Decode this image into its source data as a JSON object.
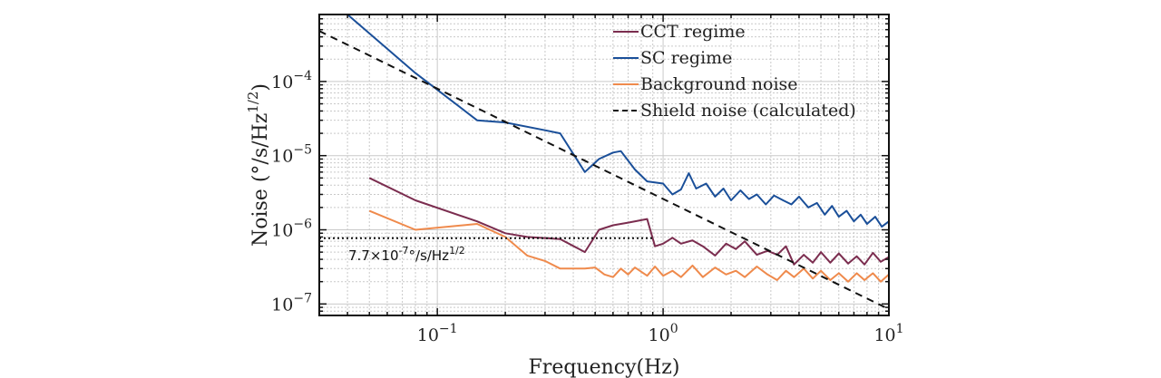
{
  "chart_data": {
    "type": "line",
    "xlabel": "Frequency(Hz)",
    "ylabel_main": "Noise (°/s/Hz",
    "ylabel_sup": "1/2",
    "ylabel_end": ")",
    "x_scale": "log",
    "y_scale": "log",
    "xlim": [
      0.03,
      10
    ],
    "ylim": [
      7e-08,
      0.0008
    ],
    "grid": true,
    "legend_position": "top-right",
    "x_ticks": [
      {
        "value": 0.1,
        "base": "10",
        "exp": "−1"
      },
      {
        "value": 1,
        "base": "10",
        "exp": "0"
      },
      {
        "value": 10,
        "base": "10",
        "exp": "1"
      }
    ],
    "y_ticks": [
      {
        "value": 1e-07,
        "base": "10",
        "exp": "−7"
      },
      {
        "value": 1e-06,
        "base": "10",
        "exp": "−6"
      },
      {
        "value": 1e-05,
        "base": "10",
        "exp": "−5"
      },
      {
        "value": 0.0001,
        "base": "10",
        "exp": "−4"
      }
    ],
    "series": [
      {
        "name": "CCT regime",
        "color": "#7b2d4f",
        "dash": "",
        "points": [
          [
            0.05,
            5e-06
          ],
          [
            0.08,
            2.5e-06
          ],
          [
            0.15,
            1.3e-06
          ],
          [
            0.2,
            9e-07
          ],
          [
            0.25,
            8e-07
          ],
          [
            0.35,
            7.5e-07
          ],
          [
            0.45,
            5e-07
          ],
          [
            0.52,
            1e-06
          ],
          [
            0.6,
            1.15e-06
          ],
          [
            0.7,
            1.25e-06
          ],
          [
            0.85,
            1.4e-06
          ],
          [
            0.92,
            6e-07
          ],
          [
            1.0,
            6.5e-07
          ],
          [
            1.1,
            7.8e-07
          ],
          [
            1.2,
            6.5e-07
          ],
          [
            1.35,
            7.2e-07
          ],
          [
            1.5,
            6e-07
          ],
          [
            1.7,
            4.5e-07
          ],
          [
            1.9,
            6.5e-07
          ],
          [
            2.1,
            5.5e-07
          ],
          [
            2.3,
            7e-07
          ],
          [
            2.6,
            4.6e-07
          ],
          [
            2.9,
            5.2e-07
          ],
          [
            3.2,
            4.6e-07
          ],
          [
            3.5,
            6e-07
          ],
          [
            3.8,
            3.4e-07
          ],
          [
            4.2,
            4.6e-07
          ],
          [
            4.6,
            3.6e-07
          ],
          [
            5.0,
            5e-07
          ],
          [
            5.5,
            3.6e-07
          ],
          [
            6.0,
            4.8e-07
          ],
          [
            6.6,
            3.5e-07
          ],
          [
            7.2,
            4.4e-07
          ],
          [
            7.8,
            3.4e-07
          ],
          [
            8.5,
            4.9e-07
          ],
          [
            9.2,
            3.7e-07
          ],
          [
            10,
            4.3e-07
          ]
        ]
      },
      {
        "name": "SC regime",
        "color": "#1a4f99",
        "dash": "",
        "points": [
          [
            0.04,
            0.0008
          ],
          [
            0.08,
            0.00013
          ],
          [
            0.15,
            3e-05
          ],
          [
            0.2,
            2.8e-05
          ],
          [
            0.3,
            2.2e-05
          ],
          [
            0.35,
            2e-05
          ],
          [
            0.45,
            6e-06
          ],
          [
            0.52,
            9e-06
          ],
          [
            0.6,
            1.1e-05
          ],
          [
            0.65,
            1.15e-05
          ],
          [
            0.75,
            6.5e-06
          ],
          [
            0.85,
            4.5e-06
          ],
          [
            1.0,
            4.2e-06
          ],
          [
            1.1,
            3e-06
          ],
          [
            1.2,
            3.5e-06
          ],
          [
            1.3,
            5.8e-06
          ],
          [
            1.4,
            3.6e-06
          ],
          [
            1.55,
            4.2e-06
          ],
          [
            1.7,
            2.8e-06
          ],
          [
            1.85,
            3.6e-06
          ],
          [
            2.0,
            2.5e-06
          ],
          [
            2.2,
            3.4e-06
          ],
          [
            2.4,
            2.6e-06
          ],
          [
            2.6,
            3e-06
          ],
          [
            2.85,
            2.2e-06
          ],
          [
            3.1,
            2.9e-06
          ],
          [
            3.4,
            2.5e-06
          ],
          [
            3.7,
            2.2e-06
          ],
          [
            4.0,
            2.8e-06
          ],
          [
            4.4,
            2e-06
          ],
          [
            4.8,
            2.3e-06
          ],
          [
            5.2,
            1.6e-06
          ],
          [
            5.6,
            2.1e-06
          ],
          [
            6.0,
            1.5e-06
          ],
          [
            6.5,
            1.8e-06
          ],
          [
            7.0,
            1.3e-06
          ],
          [
            7.5,
            1.6e-06
          ],
          [
            8.0,
            1.2e-06
          ],
          [
            8.7,
            1.5e-06
          ],
          [
            9.3,
            1.1e-06
          ],
          [
            10,
            1.3e-06
          ]
        ]
      },
      {
        "name": "Background noise",
        "color": "#ef8a4c",
        "dash": "",
        "points": [
          [
            0.05,
            1.8e-06
          ],
          [
            0.08,
            1e-06
          ],
          [
            0.15,
            1.2e-06
          ],
          [
            0.2,
            8e-07
          ],
          [
            0.25,
            4.5e-07
          ],
          [
            0.3,
            3.8e-07
          ],
          [
            0.35,
            3e-07
          ],
          [
            0.45,
            3e-07
          ],
          [
            0.5,
            3.1e-07
          ],
          [
            0.55,
            2.5e-07
          ],
          [
            0.6,
            2.3e-07
          ],
          [
            0.65,
            3e-07
          ],
          [
            0.7,
            2.5e-07
          ],
          [
            0.75,
            3.1e-07
          ],
          [
            0.85,
            2.4e-07
          ],
          [
            0.92,
            3.2e-07
          ],
          [
            1.0,
            2.4e-07
          ],
          [
            1.1,
            2.8e-07
          ],
          [
            1.2,
            2.3e-07
          ],
          [
            1.35,
            3.3e-07
          ],
          [
            1.5,
            2.3e-07
          ],
          [
            1.7,
            3.1e-07
          ],
          [
            1.9,
            2.5e-07
          ],
          [
            2.1,
            2.8e-07
          ],
          [
            2.3,
            2.3e-07
          ],
          [
            2.6,
            3.2e-07
          ],
          [
            2.9,
            2.5e-07
          ],
          [
            3.2,
            2.1e-07
          ],
          [
            3.5,
            2.8e-07
          ],
          [
            3.8,
            2.3e-07
          ],
          [
            4.2,
            3e-07
          ],
          [
            4.6,
            2.2e-07
          ],
          [
            5.0,
            2.8e-07
          ],
          [
            5.5,
            2.1e-07
          ],
          [
            6.0,
            2.6e-07
          ],
          [
            6.6,
            2e-07
          ],
          [
            7.2,
            2.6e-07
          ],
          [
            7.8,
            2.1e-07
          ],
          [
            8.5,
            2.6e-07
          ],
          [
            9.2,
            2e-07
          ],
          [
            10,
            2.5e-07
          ]
        ]
      },
      {
        "name": "Shield noise (calculated)",
        "color": "#111111",
        "dash": "8,6",
        "points": [
          [
            0.03,
            0.00048
          ],
          [
            10,
            8.5e-08
          ]
        ]
      }
    ],
    "reference_line": {
      "value": 7.7e-07,
      "x_range": [
        0.03,
        0.9
      ],
      "label_main": "7.7×10",
      "label_exp": "-7",
      "label_mid": "°/s/Hz",
      "label_exp2": "1/2"
    }
  }
}
